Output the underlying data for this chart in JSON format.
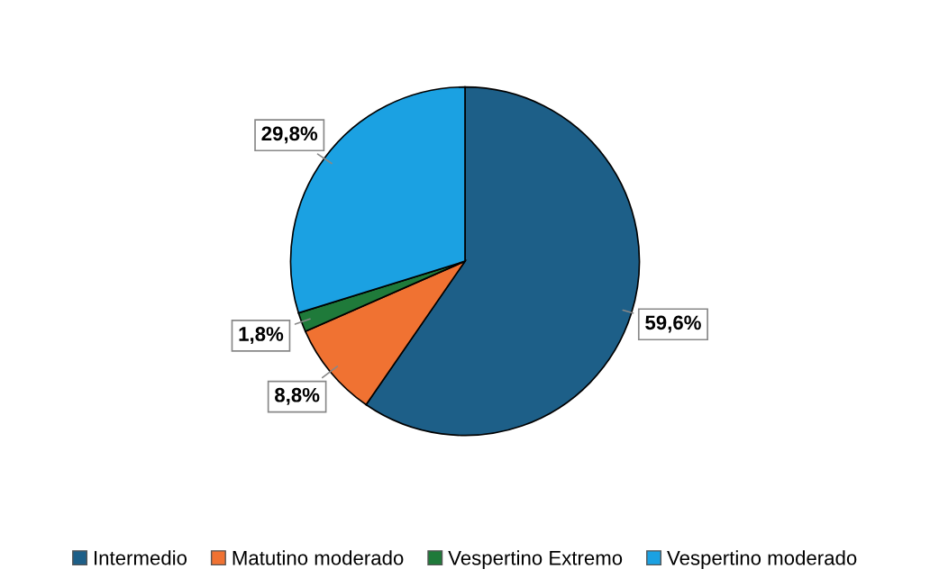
{
  "chart_data": {
    "type": "pie",
    "categories": [
      "Intermedio",
      "Matutino moderado",
      "Vespertino Extremo",
      "Vespertino moderado"
    ],
    "values": [
      59.6,
      8.8,
      1.8,
      29.8
    ],
    "value_labels": [
      "59,6%",
      "8,8%",
      "1,8%",
      "29,8%"
    ],
    "colors": [
      "#1d5f88",
      "#f07232",
      "#1f7a3a",
      "#1ba1e2"
    ],
    "legend": "bottom"
  }
}
